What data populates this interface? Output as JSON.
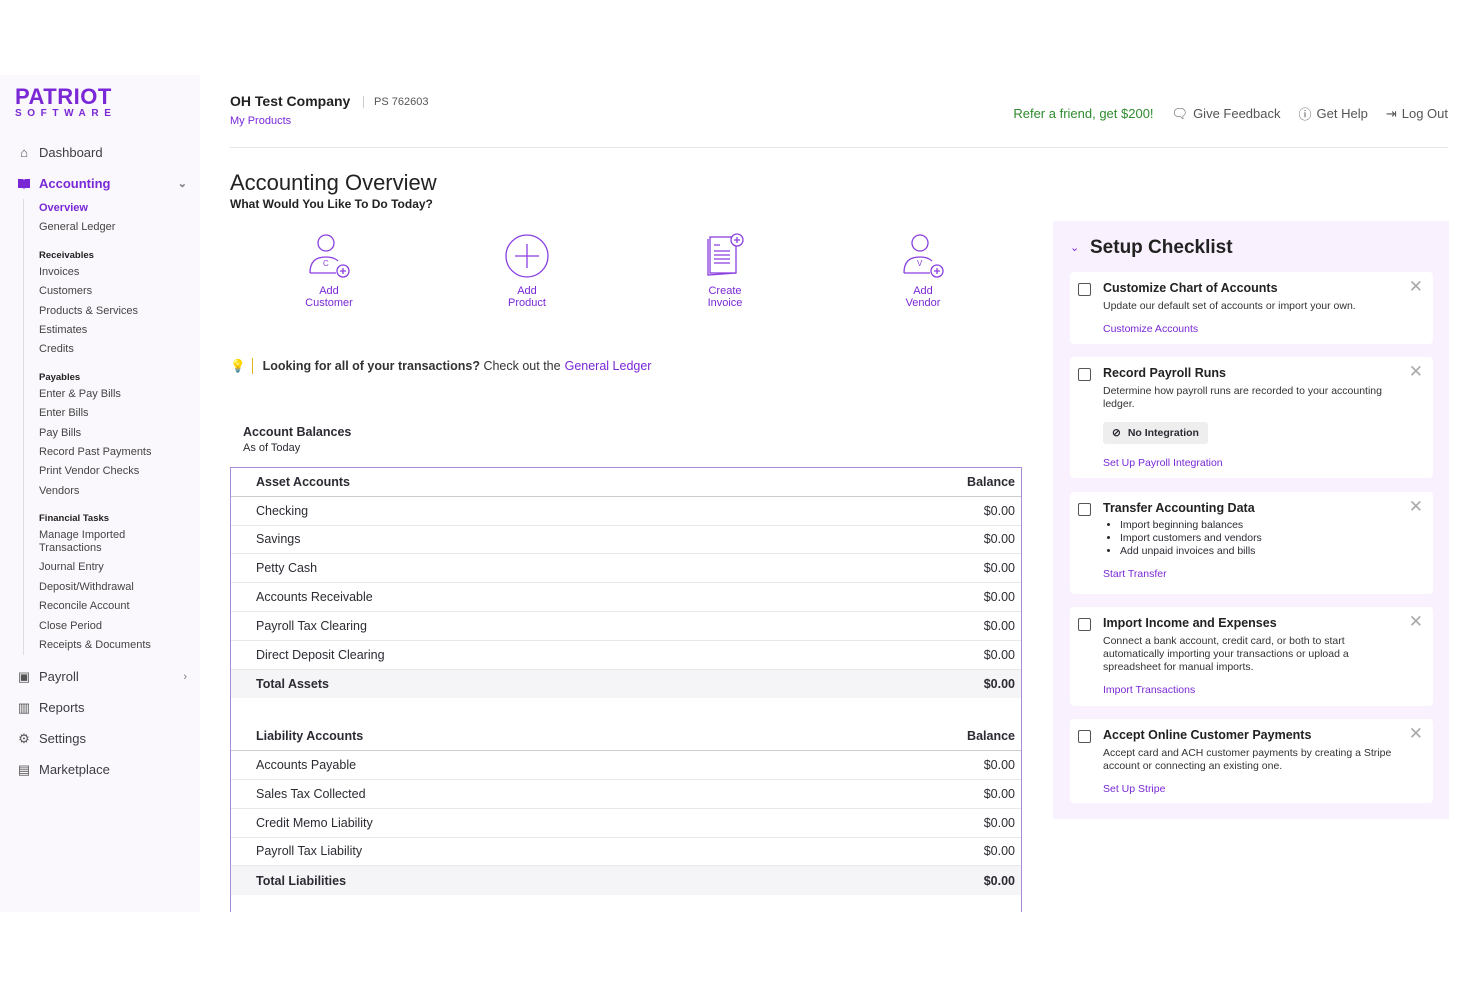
{
  "logo": {
    "line1": "PATRIOT",
    "line2": "SOFTWARE"
  },
  "sidebar": {
    "dashboard": "Dashboard",
    "accounting": "Accounting",
    "accounting_sub": {
      "overview": "Overview",
      "general_ledger": "General Ledger",
      "receivables": {
        "label": "Receivables",
        "items": [
          "Invoices",
          "Customers",
          "Products & Services",
          "Estimates",
          "Credits"
        ]
      },
      "payables": {
        "label": "Payables",
        "items": [
          "Enter & Pay Bills",
          "Enter Bills",
          "Pay Bills",
          "Record Past Payments",
          "Print Vendor Checks",
          "Vendors"
        ]
      },
      "financial": {
        "label": "Financial Tasks",
        "items": [
          "Manage Imported Transactions",
          "Journal Entry",
          "Deposit/Withdrawal",
          "Reconcile Account",
          "Close Period",
          "Receipts & Documents"
        ]
      }
    },
    "payroll": "Payroll",
    "reports": "Reports",
    "settings": "Settings",
    "marketplace": "Marketplace"
  },
  "header": {
    "company": "OH Test Company",
    "ps": "PS 762603",
    "my_products": "My Products",
    "refer": "Refer a friend, get $200!",
    "feedback": "Give Feedback",
    "help": "Get Help",
    "logout": "Log Out"
  },
  "page": {
    "title": "Accounting Overview",
    "subtitle": "What Would You Like To Do Today?"
  },
  "actions": [
    {
      "l1": "Add",
      "l2": "Customer"
    },
    {
      "l1": "Add",
      "l2": "Product"
    },
    {
      "l1": "Create",
      "l2": "Invoice"
    },
    {
      "l1": "Add",
      "l2": "Vendor"
    }
  ],
  "tip": {
    "bold": "Looking for all of your transactions?",
    "text": "Check out the",
    "link": "General Ledger"
  },
  "balances": {
    "title": "Account Balances",
    "sub": "As of Today",
    "assets": {
      "header": "Asset Accounts",
      "col": "Balance",
      "rows": [
        [
          "Checking",
          "$0.00"
        ],
        [
          "Savings",
          "$0.00"
        ],
        [
          "Petty Cash",
          "$0.00"
        ],
        [
          "Accounts Receivable",
          "$0.00"
        ],
        [
          "Payroll Tax Clearing",
          "$0.00"
        ],
        [
          "Direct Deposit Clearing",
          "$0.00"
        ]
      ],
      "total": [
        "Total Assets",
        "$0.00"
      ]
    },
    "liabilities": {
      "header": "Liability Accounts",
      "col": "Balance",
      "rows": [
        [
          "Accounts Payable",
          "$0.00"
        ],
        [
          "Sales Tax Collected",
          "$0.00"
        ],
        [
          "Credit Memo Liability",
          "$0.00"
        ],
        [
          "Payroll Tax Liability",
          "$0.00"
        ]
      ],
      "total": [
        "Total Liabilities",
        "$0.00"
      ]
    }
  },
  "checklist": {
    "title": "Setup Checklist",
    "cards": [
      {
        "title": "Customize Chart of Accounts",
        "desc": "Update our default set of accounts or import your own.",
        "link": "Customize Accounts"
      },
      {
        "title": "Record Payroll Runs",
        "desc": "Determine how payroll runs are recorded to your accounting ledger.",
        "button": "No Integration",
        "link": "Set Up Payroll Integration"
      },
      {
        "title": "Transfer Accounting Data",
        "bullets": [
          "Import beginning balances",
          "Import customers and vendors",
          "Add unpaid invoices and bills"
        ],
        "link": "Start Transfer"
      },
      {
        "title": "Import Income and Expenses",
        "desc": "Connect a bank account, credit card, or both to start automatically importing your transactions or upload a spreadsheet for manual imports.",
        "link": "Import Transactions"
      },
      {
        "title": "Accept Online Customer Payments",
        "desc": "Accept card and ACH customer payments by creating a Stripe account or connecting an existing one.",
        "link": "Set Up Stripe"
      }
    ]
  },
  "colors": {
    "brand": "#7a28d6",
    "refer": "#2e8b2e"
  }
}
